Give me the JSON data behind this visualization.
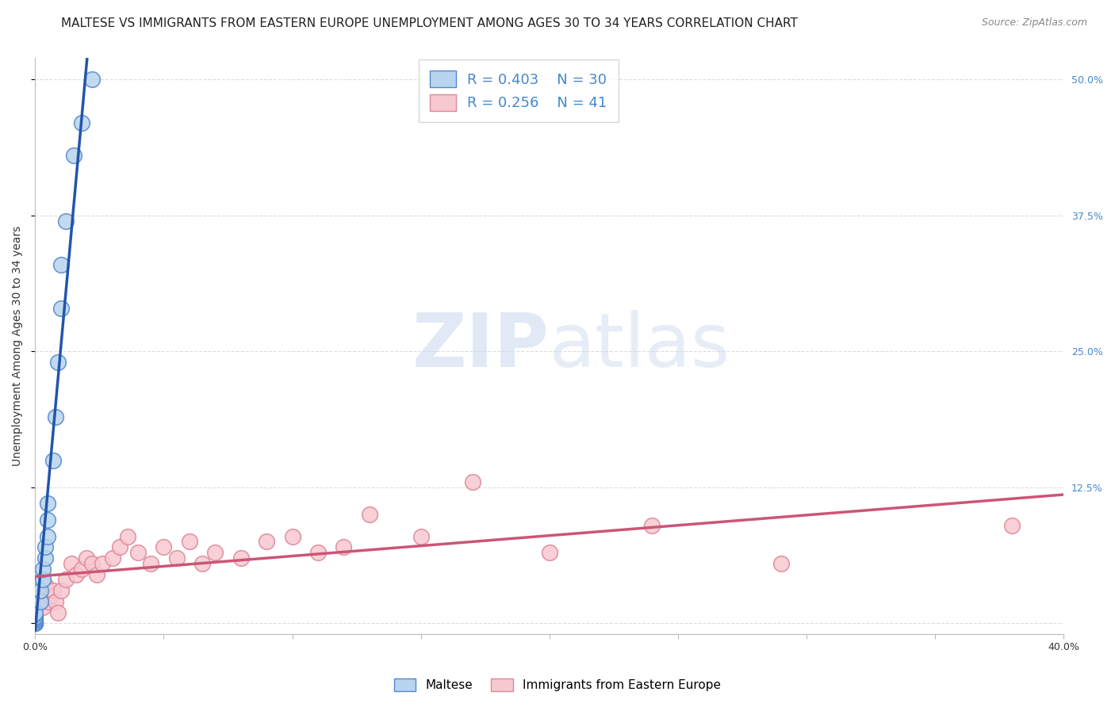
{
  "title": "MALTESE VS IMMIGRANTS FROM EASTERN EUROPE UNEMPLOYMENT AMONG AGES 30 TO 34 YEARS CORRELATION CHART",
  "source": "Source: ZipAtlas.com",
  "ylabel": "Unemployment Among Ages 30 to 34 years",
  "xlim": [
    0.0,
    0.4
  ],
  "ylim": [
    -0.01,
    0.52
  ],
  "xticks": [
    0.0,
    0.05,
    0.1,
    0.15,
    0.2,
    0.25,
    0.3,
    0.35,
    0.4
  ],
  "yticks_right": [
    0.0,
    0.125,
    0.25,
    0.375,
    0.5
  ],
  "ytick_right_labels": [
    "",
    "12.5%",
    "25.0%",
    "37.5%",
    "50.0%"
  ],
  "background_color": "#ffffff",
  "grid_color": "#dddddd",
  "watermark": "ZIPatlas",
  "maltese_x": [
    0.0,
    0.0,
    0.0,
    0.0,
    0.0,
    0.0,
    0.0,
    0.0,
    0.0,
    0.0,
    0.0,
    0.0,
    0.002,
    0.002,
    0.003,
    0.003,
    0.004,
    0.004,
    0.005,
    0.005,
    0.005,
    0.007,
    0.008,
    0.009,
    0.01,
    0.01,
    0.012,
    0.015,
    0.018,
    0.022
  ],
  "maltese_y": [
    0.0,
    0.0,
    0.0,
    0.0,
    0.0,
    0.002,
    0.003,
    0.004,
    0.005,
    0.006,
    0.008,
    0.01,
    0.02,
    0.03,
    0.04,
    0.05,
    0.06,
    0.07,
    0.08,
    0.095,
    0.11,
    0.15,
    0.19,
    0.24,
    0.29,
    0.33,
    0.37,
    0.43,
    0.46,
    0.5
  ],
  "eastern_x": [
    0.0,
    0.0,
    0.002,
    0.003,
    0.004,
    0.005,
    0.006,
    0.007,
    0.008,
    0.009,
    0.01,
    0.012,
    0.014,
    0.016,
    0.018,
    0.02,
    0.022,
    0.024,
    0.026,
    0.03,
    0.033,
    0.036,
    0.04,
    0.045,
    0.05,
    0.055,
    0.06,
    0.065,
    0.07,
    0.08,
    0.09,
    0.1,
    0.11,
    0.12,
    0.13,
    0.15,
    0.17,
    0.2,
    0.24,
    0.29,
    0.38
  ],
  "eastern_y": [
    0.02,
    0.03,
    0.025,
    0.015,
    0.035,
    0.02,
    0.025,
    0.03,
    0.02,
    0.01,
    0.03,
    0.04,
    0.055,
    0.045,
    0.05,
    0.06,
    0.055,
    0.045,
    0.055,
    0.06,
    0.07,
    0.08,
    0.065,
    0.055,
    0.07,
    0.06,
    0.075,
    0.055,
    0.065,
    0.06,
    0.075,
    0.08,
    0.065,
    0.07,
    0.1,
    0.08,
    0.13,
    0.065,
    0.09,
    0.055,
    0.09
  ],
  "maltese_color": "#b8d4ee",
  "maltese_edge_color": "#5588cc",
  "maltese_line_color": "#2255aa",
  "eastern_color": "#f8c8d0",
  "eastern_edge_color": "#dd8899",
  "eastern_line_color": "#cc5577",
  "legend_R_maltese": "0.403",
  "legend_N_maltese": "30",
  "legend_R_eastern": "0.256",
  "legend_N_eastern": "41",
  "legend_label_maltese": "Maltese",
  "legend_label_eastern": "Immigrants from Eastern Europe",
  "title_fontsize": 11,
  "axis_label_fontsize": 10,
  "tick_fontsize": 9,
  "legend_fontsize": 13,
  "source_fontsize": 9
}
